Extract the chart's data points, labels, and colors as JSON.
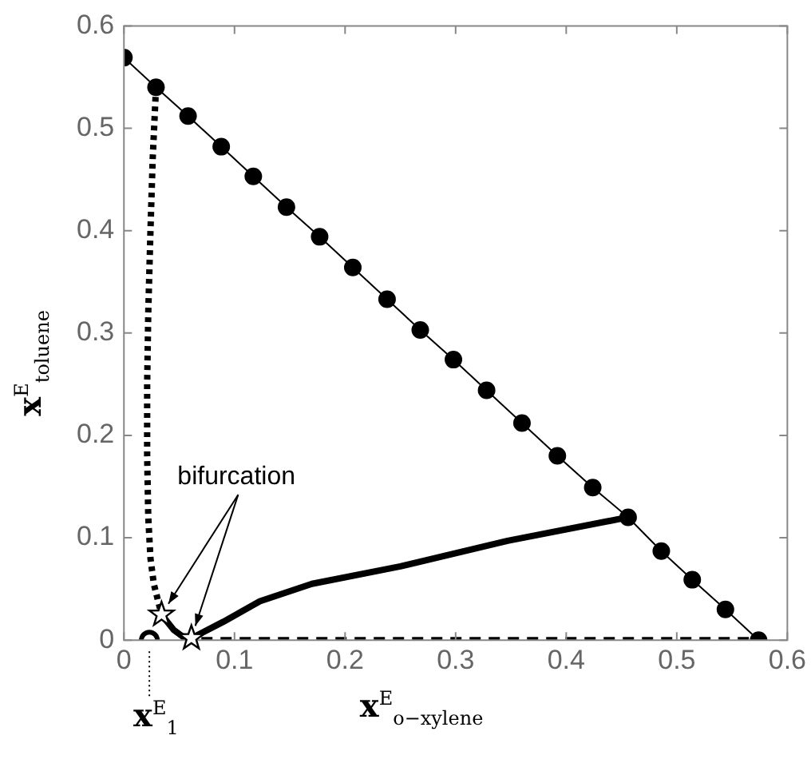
{
  "chart_data": {
    "type": "line",
    "xlabel": "x$^{E}$$_{o−xylene}$",
    "ylabel": "x$^{E}$$_{toluene}$",
    "xlim": [
      0,
      0.6
    ],
    "ylim": [
      0,
      0.6
    ],
    "xticks": [
      0,
      0.1,
      0.2,
      0.3,
      0.4,
      0.5,
      0.6
    ],
    "yticks": [
      0,
      0.1,
      0.2,
      0.3,
      0.4,
      0.5,
      0.6
    ],
    "grid": false,
    "legend": false,
    "annotations": [
      {
        "text": "bifurcation",
        "x": 0.034,
        "y": 0.025
      },
      {
        "text": "x$^{E}$$_{1}$",
        "x": 0.023,
        "y": 0
      }
    ],
    "series": [
      {
        "color": "#000000",
        "marker": "circle",
        "line_style": "solid",
        "x": [
          0,
          0.029,
          0.058,
          0.088,
          0.117,
          0.147,
          0.177,
          0.207,
          0.238,
          0.268,
          0.298,
          0.328,
          0.36,
          0.392,
          0.424,
          0.456,
          0.486,
          0.514,
          0.544,
          0.574
        ],
        "values": [
          0.569,
          0.54,
          0.512,
          0.482,
          0.453,
          0.423,
          0.394,
          0.364,
          0.333,
          0.303,
          0.274,
          0.244,
          0.212,
          0.18,
          0.149,
          0.12,
          0.087,
          0.059,
          0.03,
          0
        ]
      },
      {
        "color": "#000000",
        "marker": "none",
        "line_style": "dotted",
        "x": [
          0.029,
          0.026,
          0.024,
          0.022,
          0.021,
          0.021,
          0.022,
          0.024,
          0.027,
          0.034
        ],
        "values": [
          0.54,
          0.47,
          0.4,
          0.32,
          0.25,
          0.18,
          0.12,
          0.08,
          0.055,
          0.025
        ]
      },
      {
        "color": "#000000",
        "marker": "none",
        "line_style": "solid",
        "x": [
          0.034,
          0.045,
          0.055,
          0.065,
          0.09,
          0.123,
          0.17,
          0.25,
          0.347,
          0.456
        ],
        "values": [
          0.025,
          0.01,
          0.002,
          0.004,
          0.018,
          0.038,
          0.055,
          0.072,
          0.097,
          0.12
        ]
      },
      {
        "color": "#000000",
        "marker": "none",
        "line_style": "dashed",
        "x": [
          0.07,
          0.574
        ],
        "values": [
          0,
          0
        ]
      },
      {
        "type": "scatter",
        "color": "#000000",
        "marker": "star",
        "x": [
          0.034,
          0.061
        ],
        "values": [
          0.025,
          0.002
        ]
      },
      {
        "type": "scatter",
        "color": "#000000",
        "marker": "circle",
        "x": [
          0.023
        ],
        "values": [
          0
        ]
      }
    ]
  }
}
